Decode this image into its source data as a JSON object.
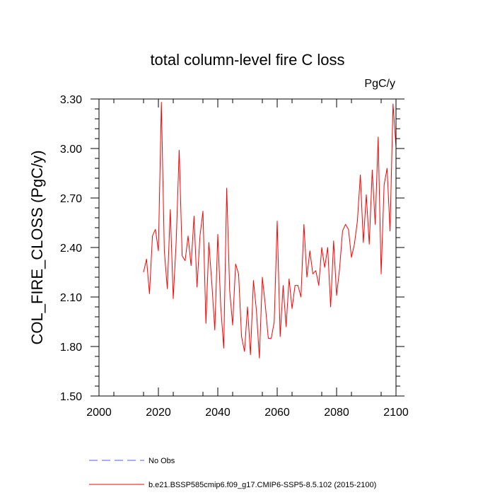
{
  "chart_data": {
    "type": "line",
    "title": "total column-level fire C loss",
    "units_label": "PgC/y",
    "xlabel": "",
    "ylabel": "COL_FIRE_CLOSS  (PgC/y)",
    "xlim": [
      2000,
      2100
    ],
    "ylim": [
      1.5,
      3.3
    ],
    "x_ticks": [
      2000,
      2020,
      2040,
      2060,
      2080,
      2100
    ],
    "x_tick_labels": [
      "2000",
      "2020",
      "2040",
      "2060",
      "2080",
      "2100"
    ],
    "y_ticks": [
      1.5,
      1.8,
      2.1,
      2.4,
      2.7,
      3.0,
      3.3
    ],
    "y_tick_labels": [
      "1.50",
      "1.80",
      "2.10",
      "2.40",
      "2.70",
      "3.00",
      "3.30"
    ],
    "grid": false,
    "series": [
      {
        "name": "b.e21.BSSP585cmip6.f09_g17.CMIP6-SSP5-8.5.102 (2015-2100)",
        "color": "#ff0000",
        "x": [
          2015,
          2016,
          2017,
          2018,
          2019,
          2020,
          2021,
          2022,
          2023,
          2024,
          2025,
          2026,
          2027,
          2028,
          2029,
          2030,
          2031,
          2032,
          2033,
          2034,
          2035,
          2036,
          2037,
          2038,
          2039,
          2040,
          2041,
          2042,
          2043,
          2044,
          2045,
          2046,
          2047,
          2048,
          2049,
          2050,
          2051,
          2052,
          2053,
          2054,
          2055,
          2056,
          2057,
          2058,
          2059,
          2060,
          2061,
          2062,
          2063,
          2064,
          2065,
          2066,
          2067,
          2068,
          2069,
          2070,
          2071,
          2072,
          2073,
          2074,
          2075,
          2076,
          2077,
          2078,
          2079,
          2080,
          2081,
          2082,
          2083,
          2084,
          2085,
          2086,
          2087,
          2088,
          2089,
          2090,
          2091,
          2092,
          2093,
          2094,
          2095,
          2096,
          2097,
          2098,
          2099,
          2100
        ],
        "values": [
          2.25,
          2.33,
          2.12,
          2.47,
          2.51,
          2.38,
          3.28,
          2.38,
          2.15,
          2.63,
          2.09,
          2.44,
          2.99,
          2.35,
          2.32,
          2.47,
          2.29,
          2.59,
          2.16,
          2.47,
          2.62,
          1.94,
          2.43,
          2.18,
          1.9,
          2.48,
          2.04,
          1.79,
          2.76,
          2.14,
          1.93,
          2.3,
          2.24,
          1.86,
          1.77,
          2.04,
          1.75,
          2.2,
          2.02,
          1.73,
          2.22,
          2.05,
          1.85,
          1.85,
          1.95,
          2.56,
          1.86,
          2.17,
          1.92,
          2.21,
          2.03,
          2.17,
          2.17,
          2.1,
          2.54,
          2.22,
          2.38,
          2.24,
          2.26,
          2.17,
          2.4,
          2.28,
          2.4,
          2.04,
          2.44,
          2.11,
          2.27,
          2.5,
          2.54,
          2.51,
          2.34,
          2.42,
          2.56,
          2.84,
          2.43,
          2.72,
          2.42,
          2.87,
          2.54,
          3.07,
          2.24,
          2.78,
          2.88,
          2.5,
          3.27,
          3.01
        ]
      }
    ],
    "legend": [
      {
        "label": "No Obs",
        "color": "#5a5aff",
        "style": "dashed"
      },
      {
        "label": "b.e21.BSSP585cmip6.f09_g17.CMIP6-SSP5-8.5.102 (2015-2100)",
        "color": "#ff0000",
        "style": "solid"
      }
    ],
    "legend_position": "bottom"
  }
}
